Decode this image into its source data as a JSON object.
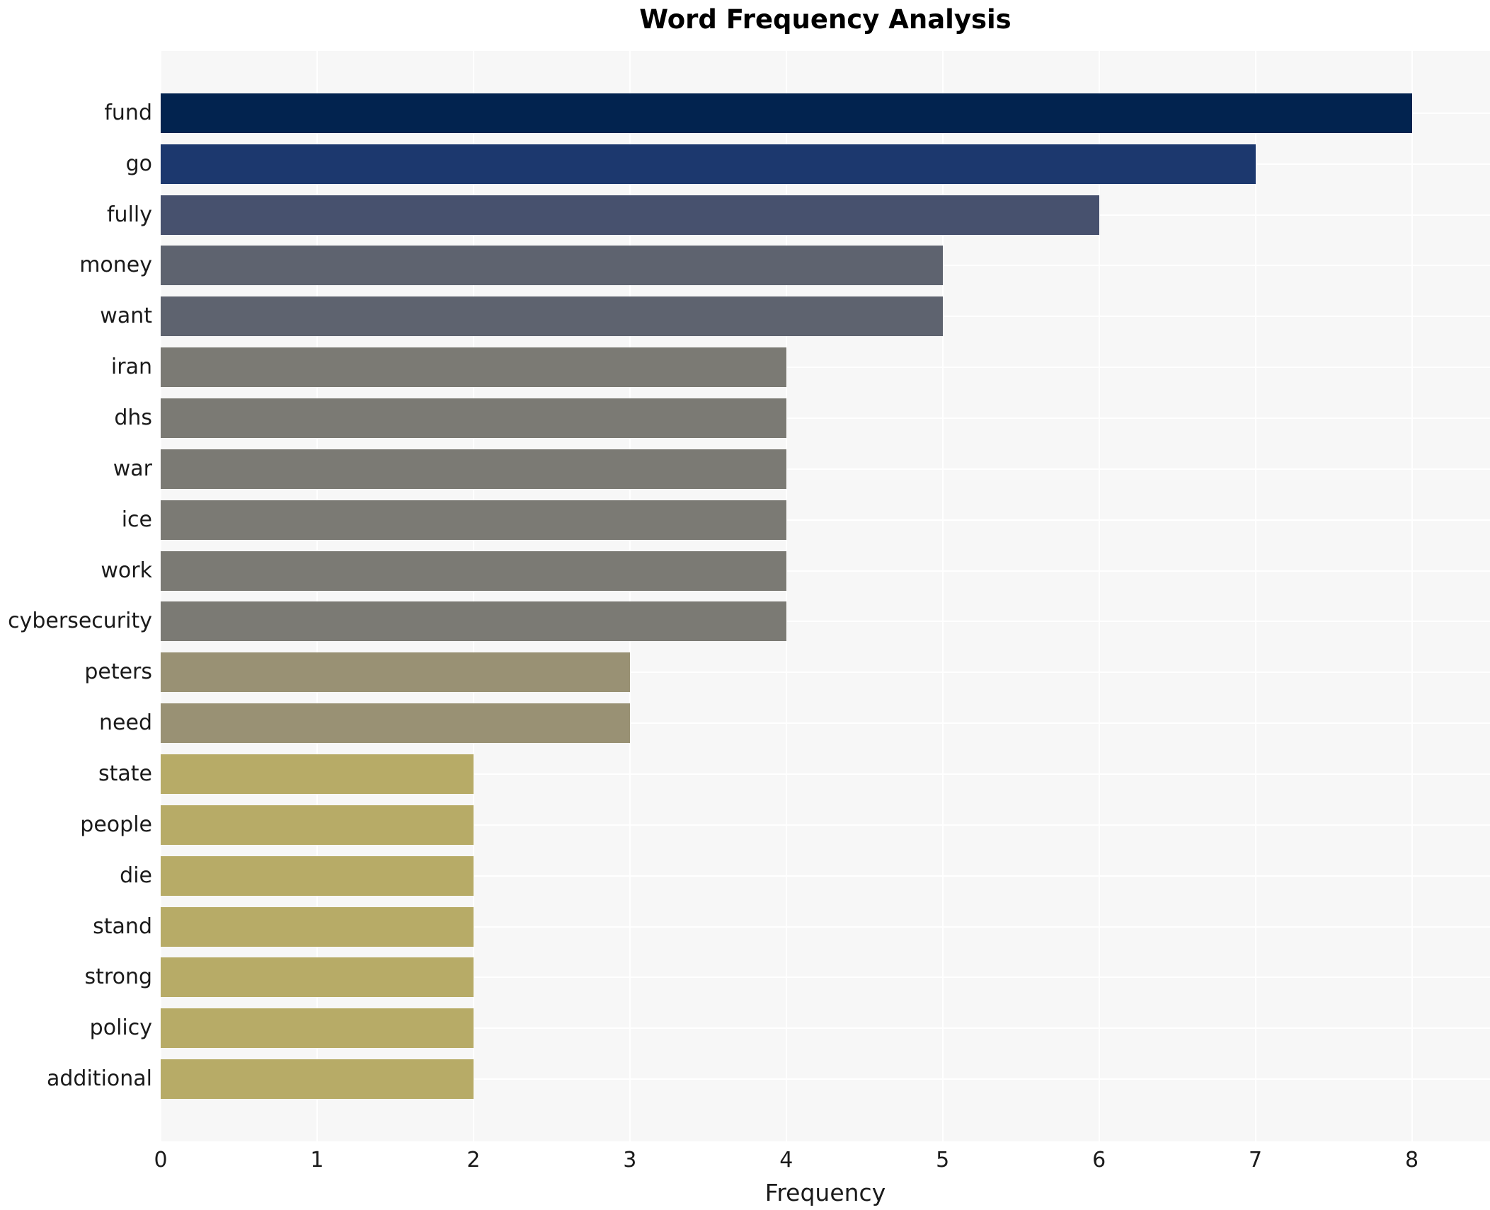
{
  "chart_data": {
    "type": "bar",
    "orientation": "horizontal",
    "title": "Word Frequency Analysis",
    "xlabel": "Frequency",
    "ylabel": "",
    "categories": [
      "fund",
      "go",
      "fully",
      "money",
      "want",
      "iran",
      "dhs",
      "war",
      "ice",
      "work",
      "cybersecurity",
      "peters",
      "need",
      "state",
      "people",
      "die",
      "stand",
      "strong",
      "policy",
      "additional"
    ],
    "values": [
      8,
      7,
      6,
      5,
      5,
      4,
      4,
      4,
      4,
      4,
      4,
      3,
      3,
      2,
      2,
      2,
      2,
      2,
      2,
      2
    ],
    "bar_colors": [
      "#02234f",
      "#1c386e",
      "#47516e",
      "#5e636f",
      "#5e636f",
      "#7b7a74",
      "#7b7a74",
      "#7b7a74",
      "#7b7a74",
      "#7b7a74",
      "#7b7a74",
      "#999174",
      "#999174",
      "#b7ab67",
      "#b7ab67",
      "#b7ab67",
      "#b7ab67",
      "#b7ab67",
      "#b7ab67",
      "#b7ab67"
    ],
    "value_color_map": {
      "8": "#02234f",
      "7": "#1c386e",
      "6": "#47516e",
      "5": "#5e636f",
      "4": "#7b7a74",
      "3": "#999174",
      "2": "#b7ab67"
    },
    "xticks": [
      0,
      1,
      2,
      3,
      4,
      5,
      6,
      7,
      8
    ],
    "xlim": [
      0,
      8.5
    ],
    "grid": true,
    "legend": null,
    "plot_background": "#f7f7f7",
    "gridline_color": "#ffffff",
    "text_color": "#1a1a1a"
  }
}
